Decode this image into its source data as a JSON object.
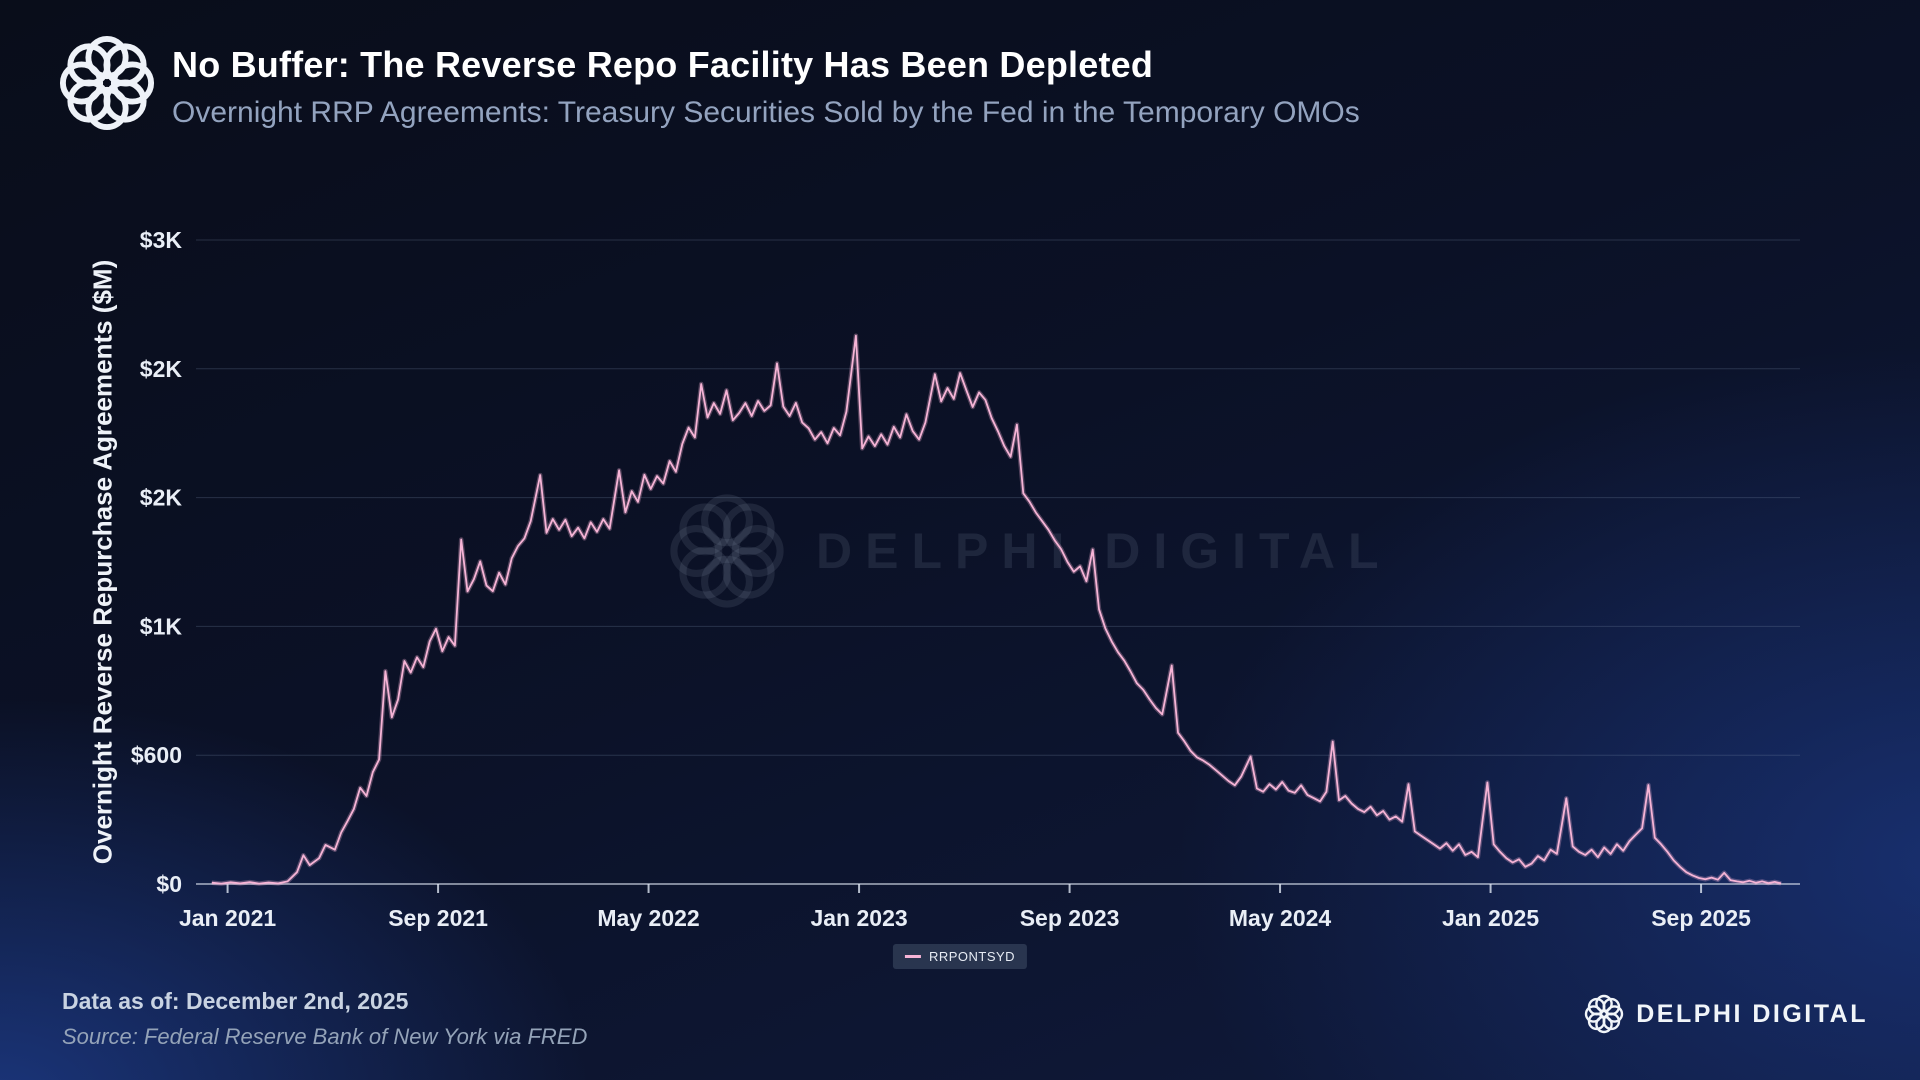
{
  "header": {
    "title": "No Buffer: The Reverse Repo Facility Has Been Depleted",
    "subtitle": "Overnight RRP Agreements: Treasury Securities Sold by the Fed in the Temporary OMOs"
  },
  "watermark": {
    "text": "DELPHI DIGITAL"
  },
  "legend": {
    "label": "RRPONTSYD"
  },
  "footer": {
    "data_as_of": "Data as of: December 2nd, 2025",
    "source": "Source: Federal Reserve Bank of New York via FRED"
  },
  "brand": {
    "wordmark": "DELPHI DIGITAL"
  },
  "colors": {
    "line_pink": "#f6b4d6",
    "background_navy": "#0b1126",
    "accent_blue": "#2650b9",
    "text_primary": "#ffffff",
    "text_secondary": "#93a3bf"
  },
  "chart_data": {
    "type": "line",
    "title": "No Buffer: The Reverse Repo Facility Has Been Depleted",
    "subtitle": "Overnight RRP Agreements: Treasury Securities Sold by the Fed in the Temporary OMOs",
    "xlabel": "",
    "ylabel": "Overnight Reverse Repurchase Agreements ($M)",
    "grid": "horizontal-only",
    "legend_position": "bottom-center",
    "xlim": [
      2020.9,
      2025.98
    ],
    "ylim": [
      0,
      3000
    ],
    "yticks": {
      "values": [
        0,
        600,
        1200,
        1800,
        2400,
        3000
      ],
      "labels": [
        "$0",
        "$600",
        "$1K",
        "$2K",
        "$2K",
        "$3K"
      ]
    },
    "xticks": {
      "values": [
        2021.0,
        2021.6667,
        2022.3333,
        2023.0,
        2023.6667,
        2024.3333,
        2025.0,
        2025.6667
      ],
      "labels": [
        "Jan 2021",
        "Sep 2021",
        "May 2022",
        "Jan 2023",
        "Sep 2023",
        "May 2024",
        "Jan 2025",
        "Sep 2025"
      ]
    },
    "series": [
      {
        "name": "RRPONTSYD",
        "color": "#f6b4d6",
        "units": "$M (billions shown as K)",
        "points": [
          [
            2020.95,
            6
          ],
          [
            2020.98,
            2
          ],
          [
            2021.01,
            8
          ],
          [
            2021.04,
            3
          ],
          [
            2021.07,
            9
          ],
          [
            2021.1,
            2
          ],
          [
            2021.13,
            7
          ],
          [
            2021.16,
            3
          ],
          [
            2021.19,
            12
          ],
          [
            2021.22,
            55
          ],
          [
            2021.24,
            134
          ],
          [
            2021.26,
            88
          ],
          [
            2021.29,
            120
          ],
          [
            2021.31,
            182
          ],
          [
            2021.34,
            160
          ],
          [
            2021.36,
            240
          ],
          [
            2021.38,
            294
          ],
          [
            2021.4,
            350
          ],
          [
            2021.42,
            448
          ],
          [
            2021.44,
            410
          ],
          [
            2021.46,
            521
          ],
          [
            2021.48,
            580
          ],
          [
            2021.5,
            992
          ],
          [
            2021.52,
            776
          ],
          [
            2021.54,
            860
          ],
          [
            2021.56,
            1039
          ],
          [
            2021.58,
            985
          ],
          [
            2021.6,
            1056
          ],
          [
            2021.62,
            1010
          ],
          [
            2021.64,
            1130
          ],
          [
            2021.66,
            1189
          ],
          [
            2021.68,
            1084
          ],
          [
            2021.7,
            1150
          ],
          [
            2021.72,
            1110
          ],
          [
            2021.74,
            1605
          ],
          [
            2021.76,
            1363
          ],
          [
            2021.78,
            1420
          ],
          [
            2021.8,
            1503
          ],
          [
            2021.82,
            1390
          ],
          [
            2021.84,
            1364
          ],
          [
            2021.86,
            1450
          ],
          [
            2021.88,
            1395
          ],
          [
            2021.9,
            1517
          ],
          [
            2021.92,
            1575
          ],
          [
            2021.94,
            1610
          ],
          [
            2021.96,
            1690
          ],
          [
            2021.99,
            1905
          ],
          [
            2022.01,
            1636
          ],
          [
            2022.03,
            1700
          ],
          [
            2022.05,
            1650
          ],
          [
            2022.07,
            1697
          ],
          [
            2022.09,
            1620
          ],
          [
            2022.11,
            1660
          ],
          [
            2022.13,
            1610
          ],
          [
            2022.15,
            1685
          ],
          [
            2022.17,
            1640
          ],
          [
            2022.19,
            1700
          ],
          [
            2022.21,
            1655
          ],
          [
            2022.24,
            1927
          ],
          [
            2022.26,
            1731
          ],
          [
            2022.28,
            1830
          ],
          [
            2022.3,
            1780
          ],
          [
            2022.32,
            1906
          ],
          [
            2022.34,
            1840
          ],
          [
            2022.36,
            1900
          ],
          [
            2022.38,
            1865
          ],
          [
            2022.4,
            1970
          ],
          [
            2022.42,
            1920
          ],
          [
            2022.44,
            2050
          ],
          [
            2022.46,
            2126
          ],
          [
            2022.48,
            2080
          ],
          [
            2022.5,
            2329
          ],
          [
            2022.52,
            2173
          ],
          [
            2022.54,
            2240
          ],
          [
            2022.56,
            2190
          ],
          [
            2022.58,
            2300
          ],
          [
            2022.6,
            2160
          ],
          [
            2022.62,
            2194
          ],
          [
            2022.64,
            2240
          ],
          [
            2022.66,
            2180
          ],
          [
            2022.68,
            2250
          ],
          [
            2022.7,
            2204
          ],
          [
            2022.72,
            2230
          ],
          [
            2022.74,
            2425
          ],
          [
            2022.76,
            2224
          ],
          [
            2022.78,
            2180
          ],
          [
            2022.8,
            2241
          ],
          [
            2022.82,
            2150
          ],
          [
            2022.84,
            2123
          ],
          [
            2022.86,
            2070
          ],
          [
            2022.88,
            2105
          ],
          [
            2022.9,
            2053
          ],
          [
            2022.92,
            2124
          ],
          [
            2022.94,
            2090
          ],
          [
            2022.96,
            2200
          ],
          [
            2022.99,
            2554
          ],
          [
            2023.01,
            2029
          ],
          [
            2023.03,
            2085
          ],
          [
            2023.05,
            2040
          ],
          [
            2023.07,
            2095
          ],
          [
            2023.09,
            2047
          ],
          [
            2023.11,
            2130
          ],
          [
            2023.13,
            2080
          ],
          [
            2023.15,
            2188
          ],
          [
            2023.17,
            2110
          ],
          [
            2023.19,
            2070
          ],
          [
            2023.21,
            2150
          ],
          [
            2023.24,
            2375
          ],
          [
            2023.26,
            2248
          ],
          [
            2023.28,
            2310
          ],
          [
            2023.3,
            2260
          ],
          [
            2023.32,
            2380
          ],
          [
            2023.34,
            2300
          ],
          [
            2023.36,
            2222
          ],
          [
            2023.38,
            2290
          ],
          [
            2023.4,
            2255
          ],
          [
            2023.42,
            2170
          ],
          [
            2023.44,
            2109
          ],
          [
            2023.46,
            2040
          ],
          [
            2023.48,
            1990
          ],
          [
            2023.5,
            2140
          ],
          [
            2023.52,
            1820
          ],
          [
            2023.54,
            1780
          ],
          [
            2023.56,
            1730
          ],
          [
            2023.58,
            1690
          ],
          [
            2023.6,
            1650
          ],
          [
            2023.62,
            1600
          ],
          [
            2023.64,
            1560
          ],
          [
            2023.66,
            1500
          ],
          [
            2023.68,
            1455
          ],
          [
            2023.7,
            1480
          ],
          [
            2023.72,
            1410
          ],
          [
            2023.74,
            1558
          ],
          [
            2023.76,
            1280
          ],
          [
            2023.78,
            1190
          ],
          [
            2023.8,
            1130
          ],
          [
            2023.82,
            1080
          ],
          [
            2023.84,
            1040
          ],
          [
            2023.86,
            990
          ],
          [
            2023.88,
            935
          ],
          [
            2023.9,
            905
          ],
          [
            2023.92,
            860
          ],
          [
            2023.94,
            820
          ],
          [
            2023.96,
            790
          ],
          [
            2023.99,
            1018
          ],
          [
            2024.01,
            705
          ],
          [
            2024.03,
            665
          ],
          [
            2024.05,
            620
          ],
          [
            2024.07,
            590
          ],
          [
            2024.09,
            575
          ],
          [
            2024.11,
            555
          ],
          [
            2024.13,
            530
          ],
          [
            2024.15,
            505
          ],
          [
            2024.17,
            480
          ],
          [
            2024.19,
            460
          ],
          [
            2024.21,
            500
          ],
          [
            2024.24,
            594
          ],
          [
            2024.26,
            445
          ],
          [
            2024.28,
            430
          ],
          [
            2024.3,
            465
          ],
          [
            2024.32,
            440
          ],
          [
            2024.34,
            475
          ],
          [
            2024.36,
            435
          ],
          [
            2024.38,
            425
          ],
          [
            2024.4,
            460
          ],
          [
            2024.42,
            415
          ],
          [
            2024.44,
            400
          ],
          [
            2024.46,
            385
          ],
          [
            2024.48,
            430
          ],
          [
            2024.5,
            664
          ],
          [
            2024.52,
            390
          ],
          [
            2024.54,
            410
          ],
          [
            2024.56,
            375
          ],
          [
            2024.58,
            350
          ],
          [
            2024.6,
            335
          ],
          [
            2024.62,
            360
          ],
          [
            2024.64,
            320
          ],
          [
            2024.66,
            340
          ],
          [
            2024.68,
            300
          ],
          [
            2024.7,
            315
          ],
          [
            2024.72,
            290
          ],
          [
            2024.74,
            465
          ],
          [
            2024.76,
            245
          ],
          [
            2024.78,
            225
          ],
          [
            2024.8,
            205
          ],
          [
            2024.82,
            185
          ],
          [
            2024.84,
            165
          ],
          [
            2024.86,
            190
          ],
          [
            2024.88,
            155
          ],
          [
            2024.9,
            185
          ],
          [
            2024.92,
            135
          ],
          [
            2024.94,
            150
          ],
          [
            2024.96,
            125
          ],
          [
            2024.99,
            473
          ],
          [
            2025.01,
            185
          ],
          [
            2025.03,
            150
          ],
          [
            2025.05,
            120
          ],
          [
            2025.07,
            100
          ],
          [
            2025.09,
            115
          ],
          [
            2025.11,
            80
          ],
          [
            2025.13,
            95
          ],
          [
            2025.15,
            130
          ],
          [
            2025.17,
            110
          ],
          [
            2025.19,
            160
          ],
          [
            2025.21,
            140
          ],
          [
            2025.24,
            399
          ],
          [
            2025.26,
            175
          ],
          [
            2025.28,
            150
          ],
          [
            2025.3,
            135
          ],
          [
            2025.32,
            160
          ],
          [
            2025.34,
            125
          ],
          [
            2025.36,
            170
          ],
          [
            2025.38,
            140
          ],
          [
            2025.4,
            185
          ],
          [
            2025.42,
            155
          ],
          [
            2025.44,
            200
          ],
          [
            2025.46,
            230
          ],
          [
            2025.48,
            260
          ],
          [
            2025.5,
            461
          ],
          [
            2025.52,
            215
          ],
          [
            2025.54,
            185
          ],
          [
            2025.56,
            150
          ],
          [
            2025.58,
            110
          ],
          [
            2025.6,
            80
          ],
          [
            2025.62,
            55
          ],
          [
            2025.64,
            40
          ],
          [
            2025.66,
            28
          ],
          [
            2025.68,
            22
          ],
          [
            2025.7,
            30
          ],
          [
            2025.72,
            20
          ],
          [
            2025.74,
            52
          ],
          [
            2025.76,
            18
          ],
          [
            2025.78,
            12
          ],
          [
            2025.8,
            8
          ],
          [
            2025.82,
            15
          ],
          [
            2025.84,
            6
          ],
          [
            2025.86,
            12
          ],
          [
            2025.88,
            4
          ],
          [
            2025.9,
            10
          ],
          [
            2025.92,
            3
          ]
        ]
      }
    ]
  }
}
